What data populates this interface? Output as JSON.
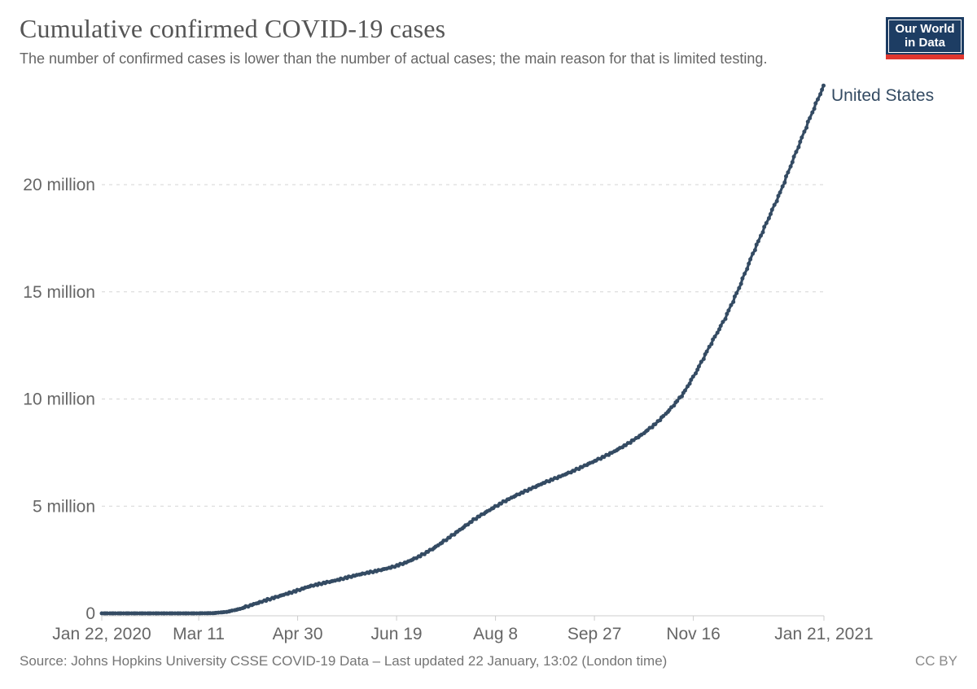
{
  "header": {
    "title": "Cumulative confirmed COVID-19 cases",
    "subtitle": "The number of confirmed cases is lower than the number of actual cases; the main reason for that is limited testing."
  },
  "logo": {
    "line1": "Our World",
    "line2": "in Data",
    "bg_color": "#1d3d63",
    "accent_color": "#e0362e"
  },
  "footer": {
    "source": "Source: Johns Hopkins University CSSE COVID-19 Data – Last updated 22 January, 13:02 (London time)",
    "license": "CC BY"
  },
  "chart_data": {
    "type": "line",
    "title": "Cumulative confirmed COVID-19 cases",
    "xlabel": "",
    "ylabel": "",
    "x_unit": "date",
    "y_unit": "cases",
    "xlim_days": [
      0,
      365
    ],
    "x_range_dates": [
      "Jan 22, 2020",
      "Jan 21, 2021"
    ],
    "ylim_millions": [
      0,
      25
    ],
    "grid": "horizontal-dashed",
    "gridline_color": "#d5d5d5",
    "axis_color": "#cccccc",
    "tick_label_color": "#666666",
    "legend_position": "end-of-line-label",
    "x_tick_labels": [
      "Jan 22, 2020",
      "Mar 11",
      "Apr 30",
      "Jun 19",
      "Aug 8",
      "Sep 27",
      "Nov 16",
      "Jan 21, 2021"
    ],
    "x_tick_days": [
      0,
      49,
      99,
      149,
      199,
      249,
      299,
      365
    ],
    "y_tick_values_millions": [
      0,
      5,
      10,
      15,
      20
    ],
    "y_tick_labels": [
      "0",
      "5 million",
      "10 million",
      "15 million",
      "20 million"
    ],
    "series": [
      {
        "name": "United States",
        "color": "#344b63",
        "marker": "circle-daily",
        "points_day_vs_million_cases": [
          [
            0,
            0.0
          ],
          [
            7,
            0.0
          ],
          [
            14,
            0.0
          ],
          [
            21,
            0.0
          ],
          [
            28,
            0.0
          ],
          [
            35,
            0.0
          ],
          [
            42,
            0.0002
          ],
          [
            49,
            0.0013
          ],
          [
            56,
            0.008
          ],
          [
            63,
            0.066
          ],
          [
            70,
            0.21
          ],
          [
            77,
            0.43
          ],
          [
            84,
            0.64
          ],
          [
            91,
            0.84
          ],
          [
            98,
            1.04
          ],
          [
            105,
            1.26
          ],
          [
            112,
            1.41
          ],
          [
            119,
            1.55
          ],
          [
            126,
            1.72
          ],
          [
            133,
            1.87
          ],
          [
            140,
            2.0
          ],
          [
            147,
            2.16
          ],
          [
            154,
            2.38
          ],
          [
            161,
            2.68
          ],
          [
            168,
            3.05
          ],
          [
            175,
            3.5
          ],
          [
            182,
            3.96
          ],
          [
            189,
            4.43
          ],
          [
            196,
            4.82
          ],
          [
            203,
            5.2
          ],
          [
            210,
            5.53
          ],
          [
            217,
            5.82
          ],
          [
            224,
            6.11
          ],
          [
            231,
            6.36
          ],
          [
            238,
            6.63
          ],
          [
            245,
            6.93
          ],
          [
            252,
            7.23
          ],
          [
            259,
            7.55
          ],
          [
            266,
            7.92
          ],
          [
            273,
            8.34
          ],
          [
            280,
            8.85
          ],
          [
            287,
            9.49
          ],
          [
            294,
            10.26
          ],
          [
            301,
            11.36
          ],
          [
            308,
            12.59
          ],
          [
            315,
            13.75
          ],
          [
            322,
            15.16
          ],
          [
            329,
            16.76
          ],
          [
            336,
            18.22
          ],
          [
            343,
            19.66
          ],
          [
            350,
            21.3
          ],
          [
            357,
            22.91
          ],
          [
            364,
            24.43
          ],
          [
            365,
            24.63
          ]
        ]
      }
    ]
  }
}
